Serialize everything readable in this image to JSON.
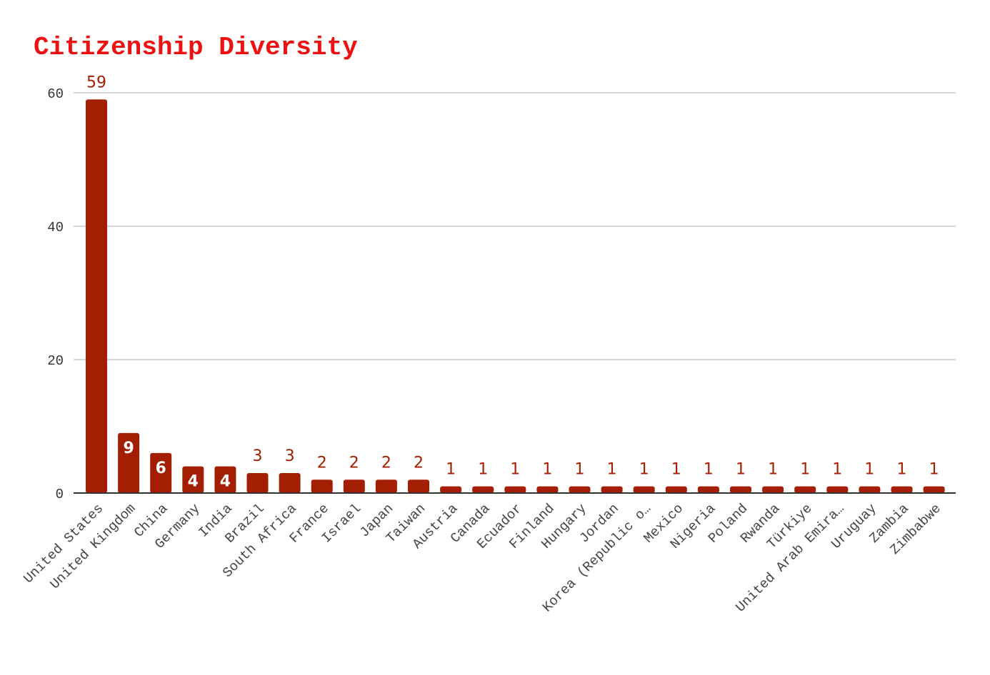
{
  "chart_data": {
    "type": "bar",
    "title": "Citizenship Diversity",
    "xlabel": "",
    "ylabel": "",
    "ylim": [
      0,
      60
    ],
    "yticks": [
      0,
      20,
      40,
      60
    ],
    "grid": true,
    "bar_color": "#a31e02",
    "title_color": "#ee1111",
    "categories": [
      "United States",
      "United Kingdom",
      "China",
      "Germany",
      "India",
      "Brazil",
      "South Africa",
      "France",
      "Israel",
      "Japan",
      "Taiwan",
      "Austria",
      "Canada",
      "Ecuador",
      "Finland",
      "Hungary",
      "Jordan",
      "Korea (Republic o…",
      "Mexico",
      "Nigeria",
      "Poland",
      "Rwanda",
      "Türkiye",
      "United Arab Emira…",
      "Uruguay",
      "Zambia",
      "Zimbabwe"
    ],
    "values": [
      59,
      9,
      6,
      4,
      4,
      3,
      3,
      2,
      2,
      2,
      2,
      1,
      1,
      1,
      1,
      1,
      1,
      1,
      1,
      1,
      1,
      1,
      1,
      1,
      1,
      1,
      1
    ],
    "data_labels": true
  }
}
